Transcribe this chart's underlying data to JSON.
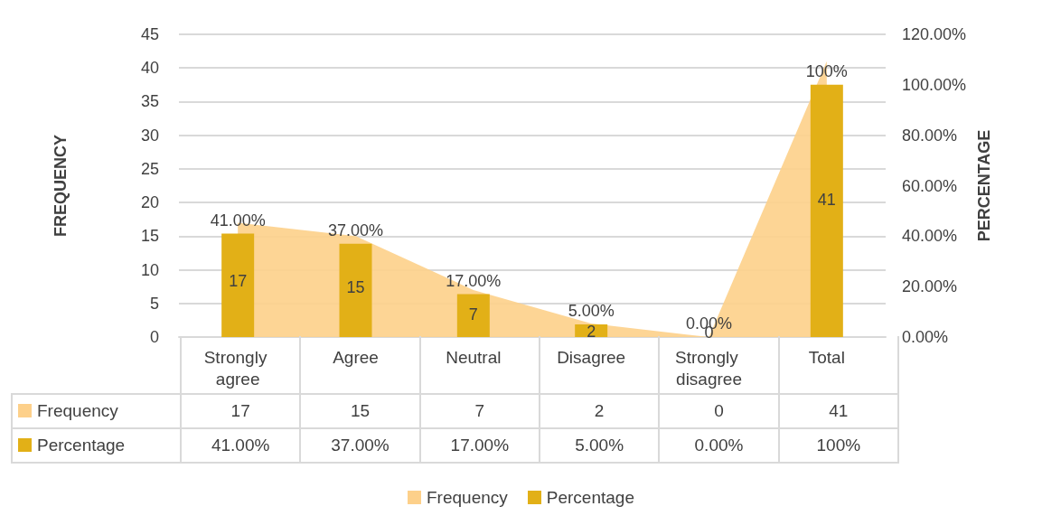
{
  "chart_data": {
    "type": "bar",
    "categories": [
      "Strongly agree",
      "Agree",
      "Neutral",
      "Disagree",
      "Strongly disagree",
      "Total"
    ],
    "ylabel": "FREQUENCY",
    "y2label": "PERCENTAGE",
    "series": [
      {
        "name": "Frequency",
        "type": "area",
        "color": "#fdd08a",
        "values": [
          17,
          15,
          7,
          2,
          0,
          41
        ],
        "value_labels": [
          "17",
          "15",
          "7",
          "2",
          "0",
          "41"
        ]
      },
      {
        "name": "Percentage",
        "axis": "y2",
        "color": "#e2b017",
        "values": [
          41,
          37,
          17,
          5,
          0,
          100
        ],
        "value_labels": [
          "41.00%",
          "37.00%",
          "17.00%",
          "5.00%",
          "0.00%",
          "100%"
        ]
      }
    ],
    "ylim": [
      0,
      45
    ],
    "yticks": [
      0,
      5,
      10,
      15,
      20,
      25,
      30,
      35,
      40,
      45
    ],
    "y2lim": [
      0,
      120
    ],
    "y2ticks": [
      {
        "value": 0,
        "label": "0.00%"
      },
      {
        "value": 20,
        "label": "20.00%"
      },
      {
        "value": 40,
        "label": "40.00%"
      },
      {
        "value": 60,
        "label": "60.00%"
      },
      {
        "value": 80,
        "label": "80.00%"
      },
      {
        "value": 100,
        "label": "100.00%"
      },
      {
        "value": 120,
        "label": "120.00%"
      }
    ],
    "grid": "y",
    "legend": "bottom"
  }
}
